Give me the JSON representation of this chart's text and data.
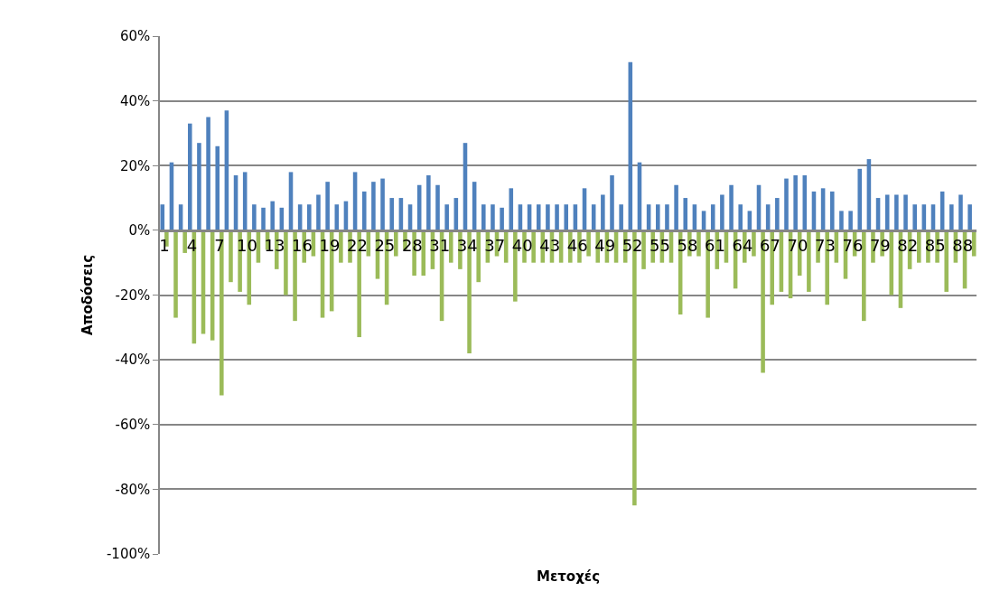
{
  "chart_data": {
    "type": "bar",
    "xlabel": "Μετοχές",
    "ylabel": "Αποδόσεις",
    "categories": [
      "1",
      null,
      null,
      "4",
      null,
      null,
      "7",
      null,
      null,
      "10",
      null,
      null,
      "13",
      null,
      null,
      "16",
      null,
      null,
      "19",
      null,
      null,
      "22",
      null,
      null,
      "25",
      null,
      null,
      "28",
      null,
      null,
      "31",
      null,
      null,
      "34",
      null,
      null,
      "37",
      null,
      null,
      "40",
      null,
      null,
      "43",
      null,
      null,
      "46",
      null,
      null,
      "49",
      null,
      null,
      "52",
      null,
      null,
      "55",
      null,
      null,
      "58",
      null,
      null,
      "61",
      null,
      null,
      "64",
      null,
      null,
      "67",
      null,
      null,
      "70",
      null,
      null,
      "73",
      null,
      null,
      "76",
      null,
      null,
      "79",
      null,
      null,
      "82",
      null,
      null,
      "85",
      null,
      null,
      "88",
      null
    ],
    "series": [
      {
        "color": "#4f81bd",
        "values": [
          8,
          21,
          8,
          33,
          27,
          35,
          26,
          37,
          17,
          18,
          8,
          7,
          9,
          7,
          18,
          8,
          8,
          11,
          15,
          8,
          9,
          18,
          12,
          15,
          16,
          10,
          10,
          8,
          14,
          17,
          14,
          8,
          10,
          27,
          15,
          8,
          8,
          7,
          13,
          8,
          8,
          8,
          8,
          8,
          8,
          8,
          13,
          8,
          11,
          17,
          8,
          52,
          21,
          8,
          8,
          8,
          14,
          10,
          8,
          6,
          8,
          11,
          14,
          8,
          6,
          14,
          8,
          10,
          16,
          17,
          17,
          12,
          13,
          12,
          6,
          6,
          19,
          22,
          10,
          11,
          11,
          11,
          8,
          8,
          8,
          12,
          8,
          11,
          8
        ]
      },
      {
        "color": "#9bbb59",
        "values": [
          -5,
          -27,
          -7,
          -35,
          -32,
          -34,
          -51,
          -16,
          -19,
          -23,
          -10,
          -6,
          -12,
          -20,
          -28,
          -10,
          -8,
          -27,
          -25,
          -10,
          -10,
          -33,
          -8,
          -15,
          -23,
          -8,
          -6,
          -14,
          -14,
          -12,
          -28,
          -10,
          -12,
          -38,
          -16,
          -10,
          -8,
          -10,
          -22,
          -10,
          -10,
          -10,
          -10,
          -10,
          -10,
          -10,
          -8,
          -10,
          -10,
          -10,
          -10,
          -85,
          -12,
          -10,
          -10,
          -10,
          -26,
          -8,
          -8,
          -27,
          -12,
          -10,
          -18,
          -10,
          -8,
          -44,
          -23,
          -19,
          -21,
          -14,
          -19,
          -10,
          -23,
          -10,
          -15,
          -8,
          -28,
          -10,
          -8,
          -20,
          -24,
          -12,
          -10,
          -10,
          -10,
          -19,
          -10,
          -18,
          -8
        ]
      }
    ],
    "ylim": [
      -100,
      60
    ],
    "yticks": [
      {
        "value": -100,
        "label": "-100%"
      },
      {
        "value": -80,
        "label": "-80%"
      },
      {
        "value": -60,
        "label": "-60%"
      },
      {
        "value": -40,
        "label": "-40%"
      },
      {
        "value": -20,
        "label": "-20%"
      },
      {
        "value": 0,
        "label": "0%"
      },
      {
        "value": 20,
        "label": "20%"
      },
      {
        "value": 40,
        "label": "40%"
      },
      {
        "value": 60,
        "label": "60%"
      }
    ],
    "grid": "y"
  }
}
